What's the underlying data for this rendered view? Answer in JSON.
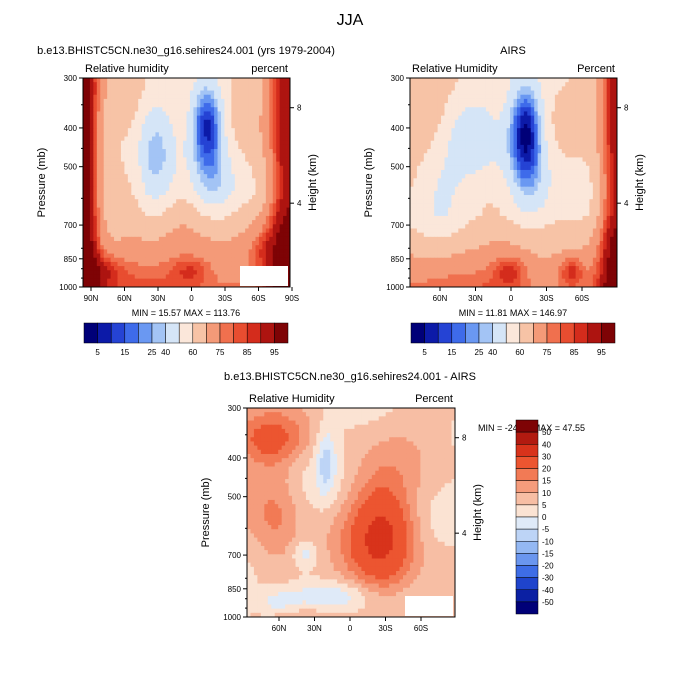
{
  "page_title": "JJA",
  "chart_data": [
    {
      "type": "heatmap",
      "panel": "model",
      "title": "b.e13.BHISTC5CN.ne30_g16.sehires24.001 (yrs 1979-2004)",
      "left_label": "Relative humidity",
      "right_label": "percent",
      "ylabel": "Pressure (mb)",
      "ylabel_right": "Height (km)",
      "x_ticks": [
        "90N",
        "60N",
        "30N",
        "0",
        "30S",
        "60S",
        "90S"
      ],
      "y_ticks": [
        "300",
        "400",
        "500",
        "700",
        "850",
        "1000"
      ],
      "height_ticks": [
        "8",
        "4"
      ],
      "min_max": "MIN = 15.57  MAX = 113.76",
      "xlim": [
        90,
        -90
      ],
      "ylim": [
        1000,
        300
      ]
    },
    {
      "type": "heatmap",
      "panel": "obs",
      "title": "AIRS",
      "left_label": "Relative Humidity",
      "right_label": "Percent",
      "ylabel": "Pressure (mb)",
      "ylabel_right": "Height (km)",
      "x_ticks": [
        "60N",
        "30N",
        "0",
        "30S",
        "60S"
      ],
      "y_ticks": [
        "300",
        "400",
        "500",
        "700",
        "850",
        "1000"
      ],
      "height_ticks": [
        "8",
        "4"
      ],
      "min_max": "MIN = 11.81  MAX = 146.97",
      "xlim": [
        80,
        -80
      ],
      "ylim": [
        1000,
        300
      ]
    },
    {
      "type": "heatmap",
      "panel": "diff",
      "title": "b.e13.BHISTC5CN.ne30_g16.sehires24.001 - AIRS",
      "left_label": "Relative Humidity",
      "right_label": "Percent",
      "ylabel": "Pressure (mb)",
      "ylabel_right": "Height (km)",
      "x_ticks": [
        "60N",
        "30N",
        "0",
        "30S",
        "60S"
      ],
      "y_ticks": [
        "300",
        "400",
        "500",
        "700",
        "850",
        "1000"
      ],
      "height_ticks": [
        "8",
        "4"
      ],
      "min_max": "MIN = -24.05  MAX =  47.55",
      "xlim": [
        80,
        -80
      ],
      "ylim": [
        1000,
        300
      ]
    }
  ],
  "colorbar_top": {
    "labels": [
      "5",
      "15",
      "25",
      "40",
      "60",
      "75",
      "85",
      "95"
    ],
    "colors": [
      "#000078",
      "#0c1aa8",
      "#2543d4",
      "#3e6bea",
      "#6a98f2",
      "#a3c4f5",
      "#d5e5f7",
      "#fbe7da",
      "#f7c3a6",
      "#f49a78",
      "#f0704e",
      "#e84d30",
      "#d42c1c",
      "#ad1410",
      "#7e0305"
    ]
  },
  "colorbar_diff": {
    "labels": [
      "50",
      "40",
      "30",
      "20",
      "15",
      "10",
      "5",
      "0",
      "-5",
      "-10",
      "-15",
      "-20",
      "-30",
      "-40",
      "-50"
    ],
    "colors": [
      "#7e0305",
      "#b21a10",
      "#d8331b",
      "#ec5530",
      "#f27a55",
      "#f59c7c",
      "#f7bea4",
      "#fbe3d3",
      "#dfeaf8",
      "#bdd4f6",
      "#94b8f3",
      "#6a96ef",
      "#3e6de6",
      "#1f44cc",
      "#0b20a3",
      "#000078"
    ]
  }
}
